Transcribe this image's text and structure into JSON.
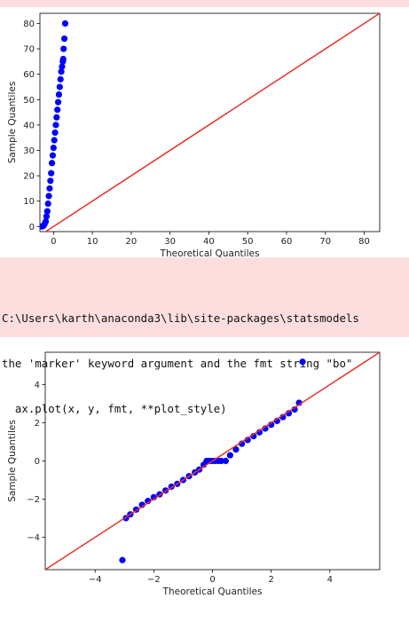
{
  "warning": {
    "lines": [
      "C:\\Users\\karth\\anaconda3\\lib\\site-packages\\statsmodels",
      "the 'marker' keyword argument and the fmt string \"bo\"",
      "  ax.plot(x, y, fmt, **plot_style)"
    ]
  },
  "colors": {
    "points": "#0000ff",
    "line": "#e8322a",
    "warning_bg": "#fddede"
  },
  "chart_data": [
    {
      "type": "scatter",
      "title": "",
      "xlabel": "Theoretical Quantiles",
      "ylabel": "Sample Quantiles",
      "xlim": [
        -3.5,
        84
      ],
      "ylim": [
        -2,
        84
      ],
      "xticks": [
        0,
        10,
        20,
        30,
        40,
        50,
        60,
        70,
        80
      ],
      "yticks": [
        0,
        10,
        20,
        30,
        40,
        50,
        60,
        70,
        80
      ],
      "grid": false,
      "reference_line": {
        "x": [
          -3.5,
          84
        ],
        "y": [
          -3.5,
          84
        ]
      },
      "points": {
        "x": [
          -3.0,
          -2.6,
          -2.3,
          -2.0,
          -1.8,
          -1.6,
          -1.4,
          -1.2,
          -1.0,
          -0.8,
          -0.6,
          -0.4,
          -0.2,
          0.0,
          0.2,
          0.4,
          0.6,
          0.8,
          1.0,
          1.2,
          1.4,
          1.6,
          1.8,
          2.0,
          2.2,
          2.4,
          2.5,
          2.6,
          2.8,
          3.0
        ],
        "y": [
          0,
          0.3,
          1,
          2,
          4,
          6,
          9,
          12,
          15,
          18,
          21,
          25,
          28,
          31,
          34,
          37,
          40,
          43,
          46,
          49,
          52,
          55,
          58,
          61,
          63,
          65,
          66,
          70,
          74,
          80
        ]
      }
    },
    {
      "type": "scatter",
      "title": "",
      "xlabel": "Theoretical Quantiles",
      "ylabel": "Sample Quantiles",
      "xlim": [
        -5.7,
        5.7
      ],
      "ylim": [
        -5.7,
        5.7
      ],
      "xticks": [
        -4,
        -2,
        0,
        2,
        4
      ],
      "yticks": [
        -4,
        -2,
        0,
        2,
        4
      ],
      "grid": false,
      "reference_line": {
        "x": [
          -5.7,
          5.7
        ],
        "y": [
          -5.7,
          5.7
        ]
      },
      "points": {
        "x": [
          -3.07,
          -2.95,
          -2.8,
          -2.6,
          -2.4,
          -2.2,
          -2.0,
          -1.8,
          -1.6,
          -1.4,
          -1.2,
          -1.0,
          -0.8,
          -0.6,
          -0.45,
          -0.3,
          -0.2,
          -0.1,
          0.0,
          0.1,
          0.2,
          0.3,
          0.45,
          0.6,
          0.8,
          1.0,
          1.2,
          1.4,
          1.6,
          1.8,
          2.0,
          2.2,
          2.4,
          2.6,
          2.8,
          2.95,
          3.07
        ],
        "y": [
          -5.2,
          -3.0,
          -2.8,
          -2.55,
          -2.3,
          -2.1,
          -1.9,
          -1.75,
          -1.55,
          -1.35,
          -1.2,
          -1.0,
          -0.8,
          -0.6,
          -0.45,
          -0.2,
          0.0,
          0.0,
          0.0,
          0.0,
          0.0,
          0.0,
          0.0,
          0.3,
          0.6,
          0.9,
          1.1,
          1.3,
          1.5,
          1.7,
          1.9,
          2.1,
          2.3,
          2.5,
          2.7,
          3.05,
          5.2
        ]
      }
    }
  ]
}
